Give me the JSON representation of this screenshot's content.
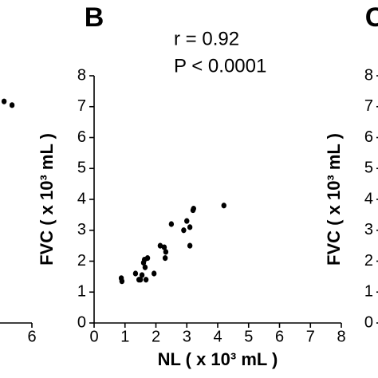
{
  "chart_data": [
    {
      "type": "scatter",
      "xticks": [
        6
      ],
      "xlim": [
        0,
        6
      ],
      "ylim": [
        0,
        8
      ],
      "x": [
        5.09,
        5.35
      ],
      "values": [
        7.17,
        7.05
      ],
      "color": "#000000"
    },
    {
      "type": "scatter",
      "title": "B",
      "annotations": [
        "r = 0.92",
        "P < 0.0001"
      ],
      "xlabel": "NL ( x 10³ mL )",
      "ylabel": "FVC ( x 10³ mL )",
      "xlim": [
        0,
        8
      ],
      "ylim": [
        0,
        8
      ],
      "xticks": [
        0,
        1,
        2,
        3,
        4,
        5,
        6,
        7,
        8
      ],
      "yticks": [
        0,
        1,
        2,
        3,
        4,
        5,
        6,
        7,
        8
      ],
      "color": "#000000",
      "x": [
        0.88,
        0.9,
        1.34,
        1.45,
        1.5,
        1.55,
        1.6,
        1.63,
        1.68,
        1.65,
        1.73,
        1.94,
        2.14,
        2.27,
        2.32,
        2.3,
        2.5,
        2.9,
        3.0,
        3.1,
        3.1,
        3.2,
        3.22,
        4.2
      ],
      "values": [
        1.45,
        1.35,
        1.6,
        1.4,
        1.4,
        1.55,
        1.95,
        2.05,
        1.4,
        1.8,
        2.1,
        1.6,
        2.5,
        2.45,
        2.3,
        2.1,
        3.2,
        3.0,
        3.3,
        3.1,
        2.5,
        3.65,
        3.7,
        3.8
      ]
    },
    {
      "type": "scatter",
      "title": "C",
      "ylabel": "FVC ( x 10³ mL )",
      "ylim": [
        0,
        8
      ],
      "yticks": [
        0,
        1,
        2,
        3,
        4,
        5,
        6,
        7,
        8
      ],
      "x": [],
      "values": [],
      "color": "#000000"
    }
  ]
}
